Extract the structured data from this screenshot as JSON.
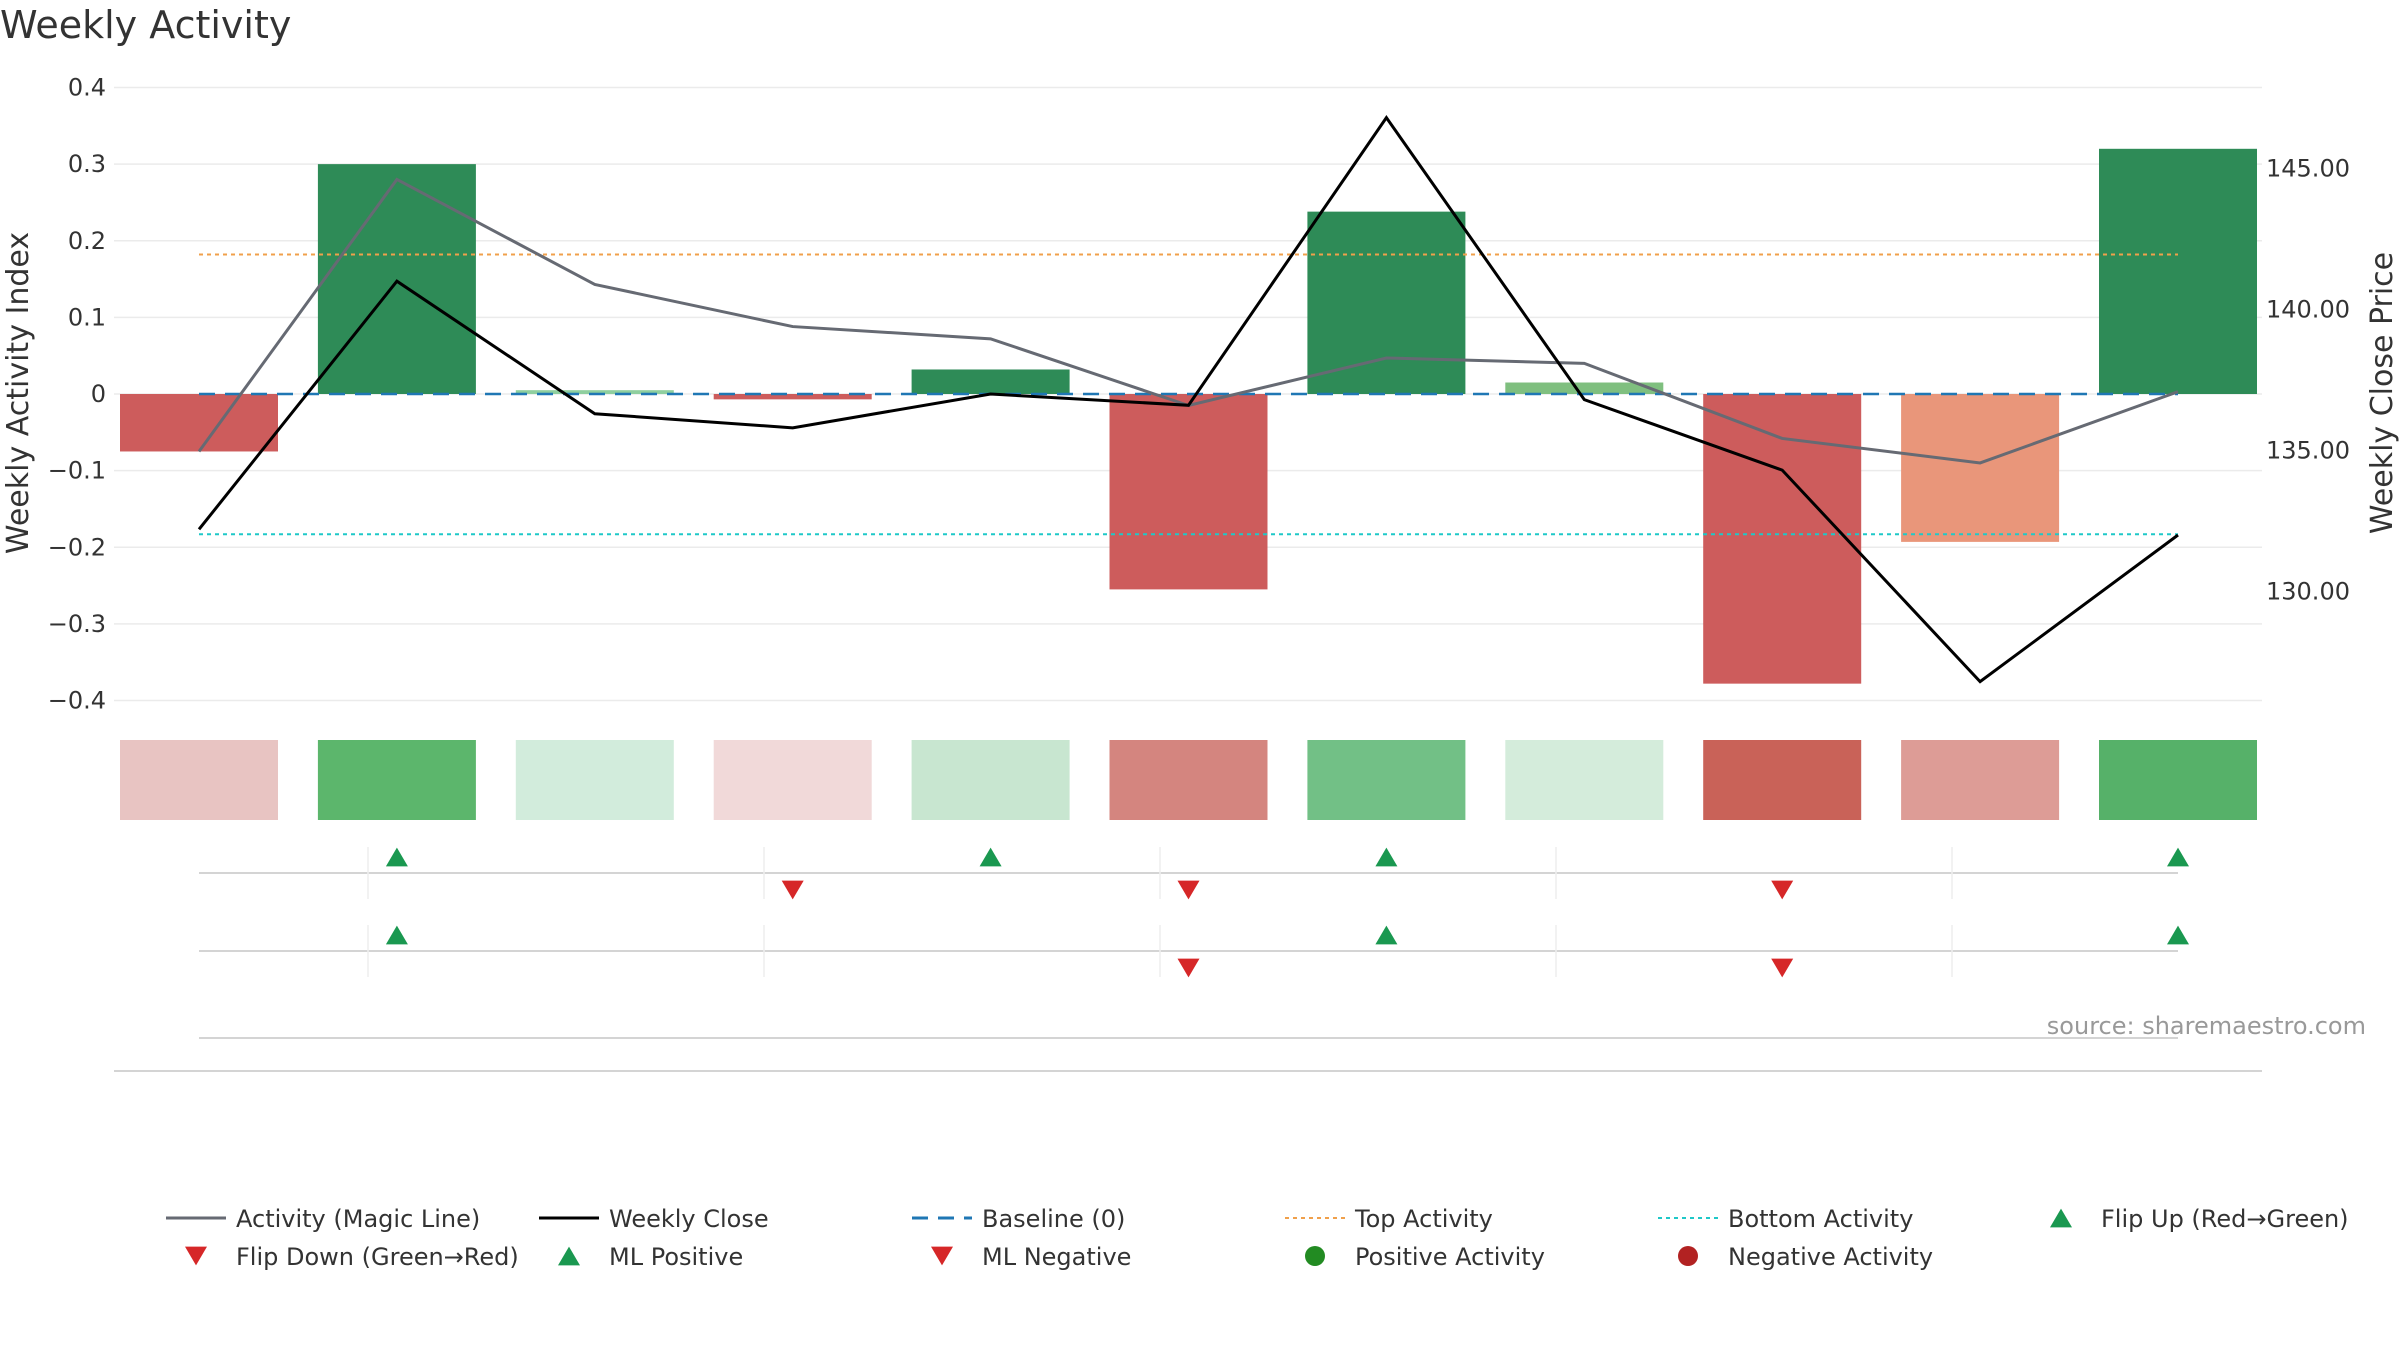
{
  "chart_data": {
    "type": "bar",
    "title": "Weekly Activity",
    "ylabel_left": "Weekly Activity Index",
    "ylabel_right": "Weekly Close Price",
    "ylim_left": [
      -0.4,
      0.4
    ],
    "ylim_right": [
      125.5,
      147.4
    ],
    "left_ticks": [
      {
        "v": 0.4,
        "label": "0.4"
      },
      {
        "v": 0.3,
        "label": "0.3"
      },
      {
        "v": 0.2,
        "label": "0.2"
      },
      {
        "v": 0.1,
        "label": "0.1"
      },
      {
        "v": 0,
        "label": "0"
      },
      {
        "v": -0.1,
        "label": "−0.1"
      },
      {
        "v": -0.2,
        "label": "−0.2"
      },
      {
        "v": -0.3,
        "label": "−0.3"
      },
      {
        "v": -0.4,
        "label": "−0.4"
      }
    ],
    "right_ticks": [
      {
        "v": 145,
        "label": "145.00"
      },
      {
        "v": 140,
        "label": "140.00"
      },
      {
        "v": 135,
        "label": "135.00"
      },
      {
        "v": 130,
        "label": "130.00"
      }
    ],
    "grid": true,
    "weeks": 11,
    "bars": [
      {
        "value": -0.075,
        "color": "#cd5c5c"
      },
      {
        "value": 0.3,
        "color": "#2e8b57"
      },
      {
        "value": 0.005,
        "color": "#8fcf9f"
      },
      {
        "value": -0.007,
        "color": "#cd5c5c"
      },
      {
        "value": 0.032,
        "color": "#2e8b57"
      },
      {
        "value": -0.255,
        "color": "#cd5c5c"
      },
      {
        "value": 0.238,
        "color": "#2e8b57"
      },
      {
        "value": 0.015,
        "color": "#7fbf7f"
      },
      {
        "value": -0.378,
        "color": "#cd5c5c"
      },
      {
        "value": -0.193,
        "color": "#e9967a"
      },
      {
        "value": 0.32,
        "color": "#2e8b57"
      }
    ],
    "magic_line": [
      -0.075,
      0.28,
      0.143,
      0.088,
      0.072,
      -0.015,
      0.047,
      0.04,
      -0.058,
      -0.09,
      0.003
    ],
    "weekly_close": [
      132.2,
      141.0,
      136.3,
      135.8,
      137.0,
      136.6,
      146.8,
      136.8,
      134.3,
      126.8,
      132.0
    ],
    "baseline": 0,
    "top_activity": 0.182,
    "bottom_activity": -0.183,
    "heat_strip_colors": [
      "#e8c4c2",
      "#5cb66c",
      "#d2ecdc",
      "#f1d9d9",
      "#c8e6d0",
      "#d4857f",
      "#72c086",
      "#d4ecdb",
      "#c96258",
      "#dd9c96",
      "#56b169"
    ],
    "flip_row": [
      {
        "week": 1,
        "dir": "up"
      },
      {
        "week": 3,
        "dir": "down"
      },
      {
        "week": 4,
        "dir": "up"
      },
      {
        "week": 5,
        "dir": "down"
      },
      {
        "week": 6,
        "dir": "up"
      },
      {
        "week": 8,
        "dir": "down"
      },
      {
        "week": 10,
        "dir": "up"
      }
    ],
    "ml_row": [
      {
        "week": 1,
        "dir": "up"
      },
      {
        "week": 5,
        "dir": "down"
      },
      {
        "week": 6,
        "dir": "up"
      },
      {
        "week": 8,
        "dir": "down"
      },
      {
        "week": 10,
        "dir": "up"
      }
    ],
    "legend": [
      {
        "label": "Activity (Magic Line)",
        "kind": "line",
        "color": "#666a73"
      },
      {
        "label": "Weekly Close",
        "kind": "line",
        "color": "#000000"
      },
      {
        "label": "Baseline (0)",
        "kind": "dash",
        "color": "#1f77b4"
      },
      {
        "label": "Top Activity",
        "kind": "dot",
        "color": "#f0a04b"
      },
      {
        "label": "Bottom Activity",
        "kind": "dot",
        "color": "#1fc8c8"
      },
      {
        "label": "Flip Up (Red→Green)",
        "kind": "tri-up",
        "color": "#1a9850"
      },
      {
        "label": "Flip Down (Green→Red)",
        "kind": "tri-down",
        "color": "#d62728"
      },
      {
        "label": "ML Positive",
        "kind": "tri-up",
        "color": "#1a9850"
      },
      {
        "label": "ML Negative",
        "kind": "tri-down",
        "color": "#d62728"
      },
      {
        "label": "Positive Activity",
        "kind": "circle",
        "color": "#228b22"
      },
      {
        "label": "Negative Activity",
        "kind": "circle",
        "color": "#b22222"
      }
    ],
    "legend_placement": "bottom",
    "source": "source: sharemaestro.com"
  }
}
